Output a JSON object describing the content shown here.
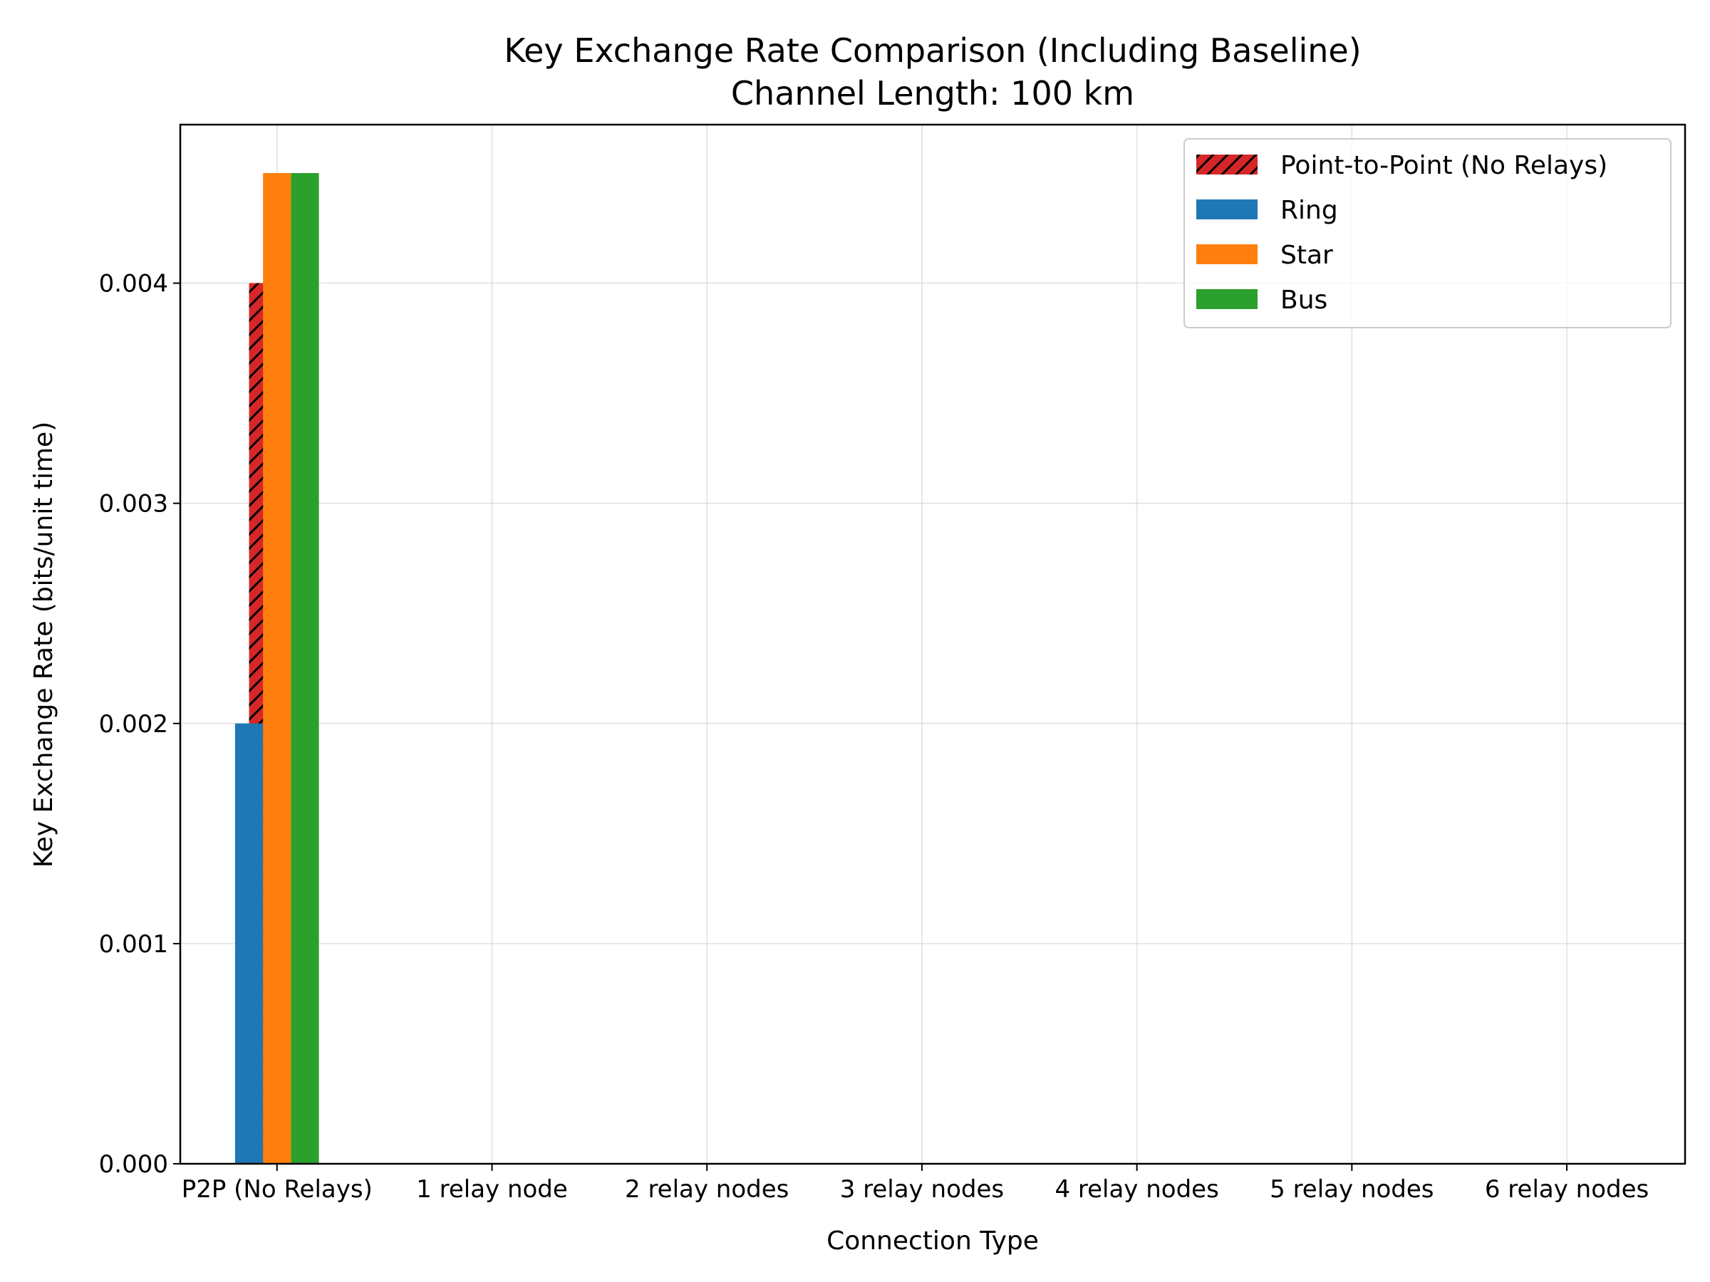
{
  "chart_data": {
    "type": "bar",
    "title": "Key Exchange Rate Comparison (Including Baseline)",
    "subtitle": "Channel Length: 100 km",
    "xlabel": "Connection Type",
    "ylabel": "Key Exchange Rate (bits/unit time)",
    "categories": [
      "P2P (No Relays)",
      "1 relay node",
      "2 relay nodes",
      "3 relay nodes",
      "4 relay nodes",
      "5 relay nodes",
      "6 relay nodes"
    ],
    "ylim": [
      0,
      0.00472
    ],
    "yticks": [
      0.0,
      0.001,
      0.002,
      0.003,
      0.004
    ],
    "ytick_labels": [
      "0.000",
      "0.001",
      "0.002",
      "0.003",
      "0.004"
    ],
    "grid": true,
    "legend_position": "top-right",
    "series": [
      {
        "name": "Point-to-Point (No Relays)",
        "color": "#d62728",
        "hatch": "diagonal",
        "values": [
          0.004,
          null,
          null,
          null,
          null,
          null,
          null
        ]
      },
      {
        "name": "Ring",
        "color": "#1f77b4",
        "values": [
          0.002,
          null,
          null,
          null,
          null,
          null,
          null
        ]
      },
      {
        "name": "Star",
        "color": "#ff7f0e",
        "values": [
          0.0045,
          null,
          null,
          null,
          null,
          null,
          null
        ]
      },
      {
        "name": "Bus",
        "color": "#2ca02c",
        "values": [
          0.0045,
          null,
          null,
          null,
          null,
          null,
          null
        ]
      }
    ]
  }
}
